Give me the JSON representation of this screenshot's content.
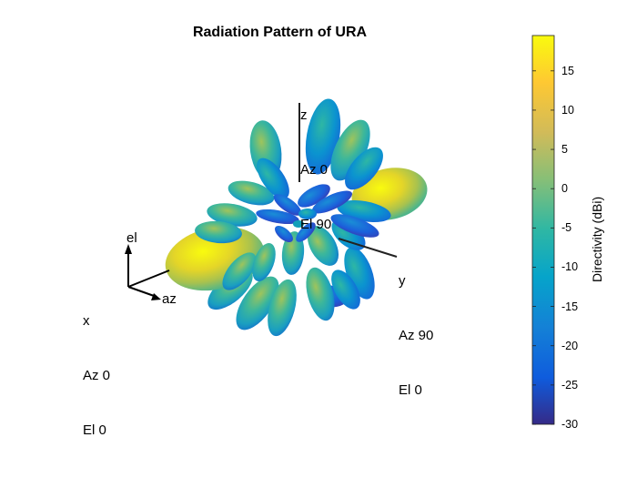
{
  "chart_data": {
    "type": "3d-radiation-pattern",
    "title": "Radiation Pattern of URA",
    "axis_labels": {
      "z": [
        "z",
        "Az 0",
        "El 90"
      ],
      "y": [
        "y",
        "Az 90",
        "El 0"
      ],
      "x": [
        "x",
        "Az 0",
        "El 0"
      ],
      "el": "el",
      "az": "az"
    },
    "colorbar": {
      "label": "Directivity (dBi)",
      "ticks": [
        15,
        10,
        5,
        0,
        -5,
        -10,
        -15,
        -20,
        -25,
        -30
      ],
      "range": [
        -30,
        19.5
      ],
      "colormap": "parula",
      "colors": [
        "#352a87",
        "#0f5cdd",
        "#1481d6",
        "#06a4ca",
        "#2eb7a4",
        "#87bf77",
        "#d1bb59",
        "#fec832",
        "#f9fb0e"
      ]
    },
    "peak_directivity_dBi": 19.5
  }
}
